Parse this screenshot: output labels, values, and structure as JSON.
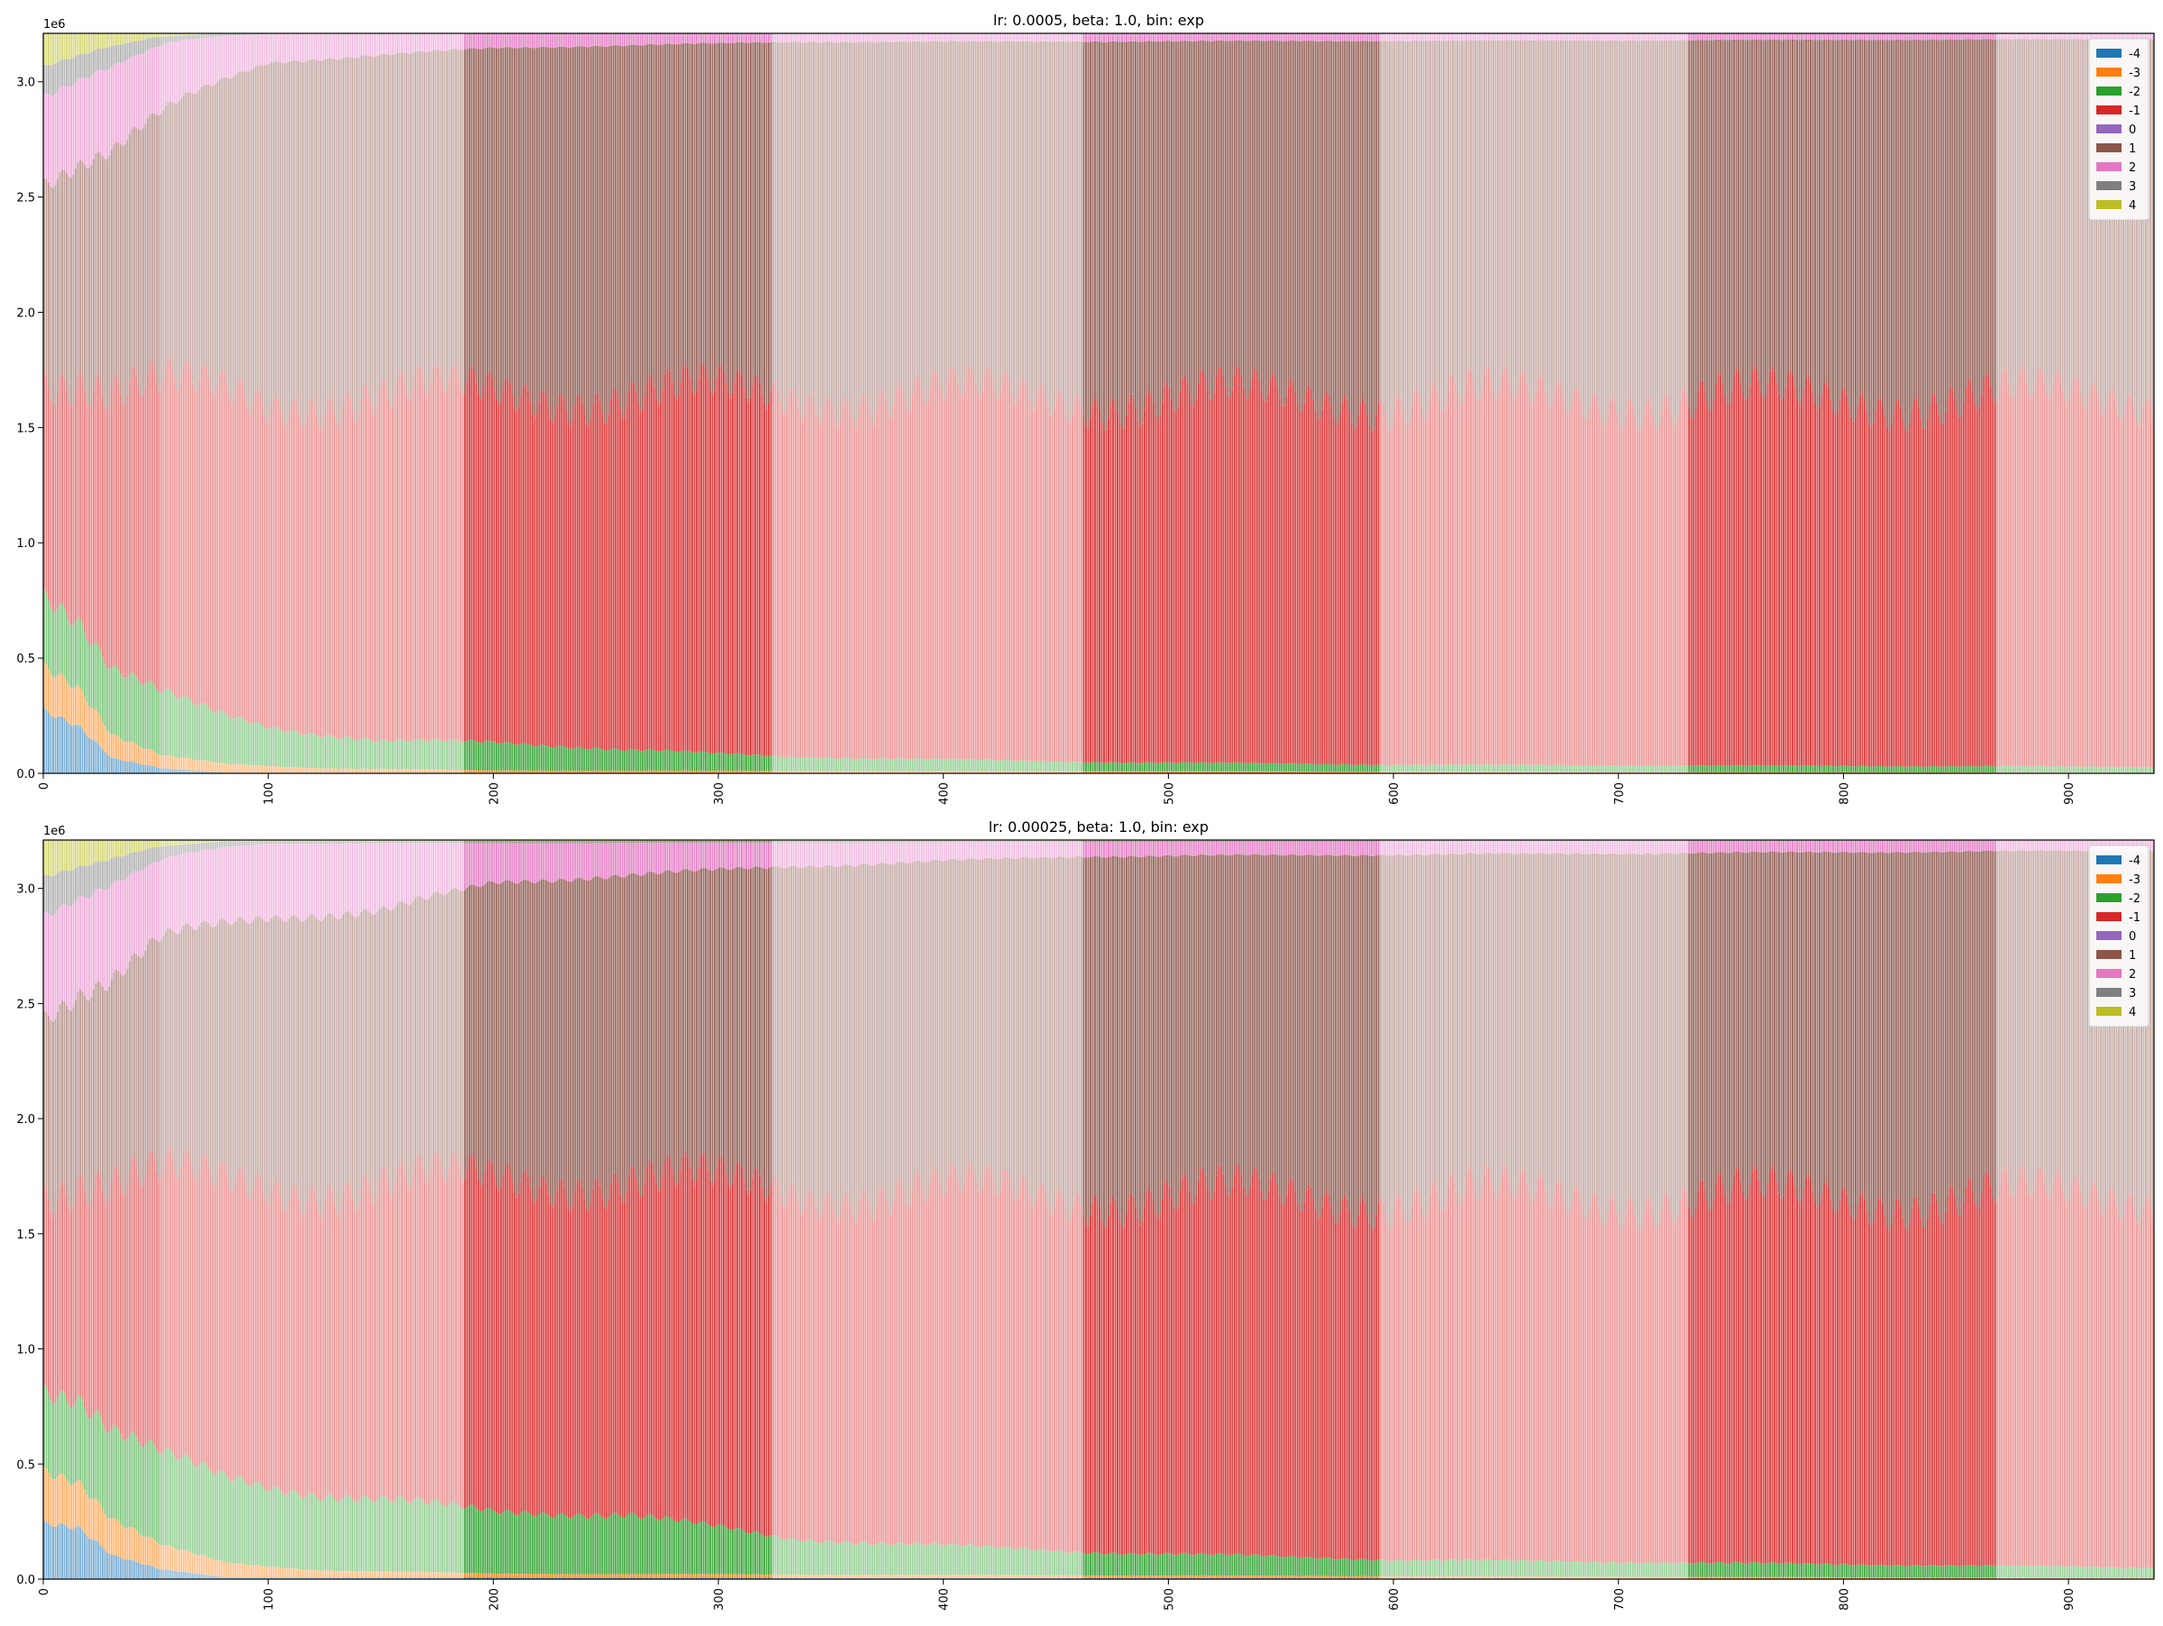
{
  "chart_data": [
    {
      "type": "bar",
      "stacked": true,
      "title": "lr: 0.0005, beta: 1.0, bin: exp",
      "xlabel": "",
      "ylabel": "",
      "y_offset_text": "1e6",
      "xlim": [
        0,
        938
      ],
      "ylim": [
        0,
        3210000
      ],
      "x_ticks": [
        "0",
        "100",
        "200",
        "300",
        "400",
        "500",
        "600",
        "700",
        "800",
        "900"
      ],
      "y_ticks": [
        "0.0",
        "0.5",
        "1.0",
        "1.5",
        "2.0",
        "2.5",
        "3.0"
      ],
      "x_tick_values": [
        0,
        100,
        200,
        300,
        400,
        500,
        600,
        700,
        800,
        900
      ],
      "y_tick_values": [
        0,
        500000,
        1000000,
        1500000,
        2000000,
        2500000,
        3000000
      ],
      "n_bars": 938,
      "bar_total": 3210000,
      "legend_position": "upper right",
      "grid": false,
      "alpha_bands": [
        [
          0,
          52,
          0.55
        ],
        [
          52,
          187,
          0.45
        ],
        [
          187,
          324,
          0.85
        ],
        [
          324,
          462,
          0.45
        ],
        [
          462,
          594,
          0.85
        ],
        [
          594,
          731,
          0.45
        ],
        [
          731,
          868,
          0.85
        ],
        [
          868,
          938,
          0.45
        ]
      ],
      "series": [
        {
          "name": "-4",
          "color": "#1f77b4",
          "profile": [
            [
              0,
              270000
            ],
            [
              15,
              200000
            ],
            [
              30,
              60000
            ],
            [
              52,
              20000
            ],
            [
              80,
              3000
            ],
            [
              938,
              0
            ]
          ]
        },
        {
          "name": "-3",
          "color": "#ff7f0e",
          "profile": [
            [
              0,
              190000
            ],
            [
              15,
              160000
            ],
            [
              30,
              90000
            ],
            [
              52,
              50000
            ],
            [
              120,
              20000
            ],
            [
              200,
              10000
            ],
            [
              938,
              3000
            ]
          ]
        },
        {
          "name": "-2",
          "color": "#2ca02c",
          "profile": [
            [
              0,
              300000
            ],
            [
              25,
              260000
            ],
            [
              52,
              250000
            ],
            [
              100,
              170000
            ],
            [
              150,
              120000
            ],
            [
              200,
              120000
            ],
            [
              260,
              90000
            ],
            [
              330,
              60000
            ],
            [
              460,
              40000
            ],
            [
              600,
              30000
            ],
            [
              938,
              25000
            ]
          ]
        },
        {
          "name": "-1",
          "color": "#d62728",
          "profile": [
            [
              0,
              900000
            ],
            [
              52,
              1200000
            ],
            [
              80,
              1350000
            ],
            [
              120,
              1450000
            ],
            [
              200,
              1500000
            ],
            [
              330,
              1550000
            ],
            [
              938,
              1600000
            ]
          ]
        },
        {
          "name": "0",
          "color": "#9467bd",
          "profile": [
            [
              0,
              0
            ],
            [
              938,
              0
            ]
          ]
        },
        {
          "name": "1",
          "color": "#8c564b",
          "profile": [
            [
              0,
              800000
            ],
            [
              30,
              950000
            ],
            [
              52,
              1100000
            ],
            [
              100,
              1450000
            ],
            [
              200,
              1480000
            ],
            [
              330,
              1520000
            ],
            [
              938,
              1560000
            ]
          ]
        },
        {
          "name": "2",
          "color": "#e377c2",
          "profile": [
            [
              0,
              350000
            ],
            [
              30,
              330000
            ],
            [
              52,
              270000
            ],
            [
              100,
              120000
            ],
            [
              200,
              60000
            ],
            [
              330,
              35000
            ],
            [
              938,
              25000
            ]
          ]
        },
        {
          "name": "3",
          "color": "#7f7f7f",
          "profile": [
            [
              0,
              120000
            ],
            [
              30,
              80000
            ],
            [
              60,
              20000
            ],
            [
              100,
              3000
            ],
            [
              938,
              0
            ]
          ]
        },
        {
          "name": "4",
          "color": "#bcbd22",
          "profile": [
            [
              0,
              130000
            ],
            [
              25,
              60000
            ],
            [
              50,
              15000
            ],
            [
              80,
              0
            ],
            [
              938,
              0
            ]
          ]
        }
      ]
    },
    {
      "type": "bar",
      "stacked": true,
      "title": "lr: 0.00025, beta: 1.0, bin: exp",
      "xlabel": "",
      "ylabel": "",
      "y_offset_text": "1e6",
      "xlim": [
        0,
        938
      ],
      "ylim": [
        0,
        3210000
      ],
      "x_ticks": [
        "0",
        "100",
        "200",
        "300",
        "400",
        "500",
        "600",
        "700",
        "800",
        "900"
      ],
      "y_ticks": [
        "0.0",
        "0.5",
        "1.0",
        "1.5",
        "2.0",
        "2.5",
        "3.0"
      ],
      "x_tick_values": [
        0,
        100,
        200,
        300,
        400,
        500,
        600,
        700,
        800,
        900
      ],
      "y_tick_values": [
        0,
        500000,
        1000000,
        1500000,
        2000000,
        2500000,
        3000000
      ],
      "n_bars": 938,
      "bar_total": 3210000,
      "legend_position": "upper right",
      "grid": false,
      "alpha_bands": [
        [
          0,
          52,
          0.55
        ],
        [
          52,
          187,
          0.45
        ],
        [
          187,
          324,
          0.85
        ],
        [
          324,
          462,
          0.45
        ],
        [
          462,
          594,
          0.85
        ],
        [
          594,
          731,
          0.45
        ],
        [
          731,
          868,
          0.85
        ],
        [
          868,
          938,
          0.45
        ]
      ],
      "series": [
        {
          "name": "-4",
          "color": "#1f77b4",
          "profile": [
            [
              0,
              250000
            ],
            [
              15,
              230000
            ],
            [
              30,
              100000
            ],
            [
              52,
              40000
            ],
            [
              80,
              8000
            ],
            [
              938,
              0
            ]
          ]
        },
        {
          "name": "-3",
          "color": "#ff7f0e",
          "profile": [
            [
              0,
              230000
            ],
            [
              15,
              200000
            ],
            [
              30,
              150000
            ],
            [
              52,
              100000
            ],
            [
              80,
              60000
            ],
            [
              120,
              30000
            ],
            [
              200,
              15000
            ],
            [
              938,
              5000
            ]
          ]
        },
        {
          "name": "-2",
          "color": "#2ca02c",
          "profile": [
            [
              0,
              350000
            ],
            [
              25,
              370000
            ],
            [
              52,
              380000
            ],
            [
              100,
              330000
            ],
            [
              150,
              300000
            ],
            [
              200,
              250000
            ],
            [
              260,
              250000
            ],
            [
              330,
              150000
            ],
            [
              460,
              100000
            ],
            [
              600,
              70000
            ],
            [
              938,
              45000
            ]
          ]
        },
        {
          "name": "-1",
          "color": "#d62728",
          "profile": [
            [
              0,
              850000
            ],
            [
              52,
              1150000
            ],
            [
              100,
              1250000
            ],
            [
              200,
              1350000
            ],
            [
              330,
              1450000
            ],
            [
              460,
              1500000
            ],
            [
              938,
              1600000
            ]
          ]
        },
        {
          "name": "0",
          "color": "#9467bd",
          "profile": [
            [
              0,
              0
            ],
            [
              938,
              0
            ]
          ]
        },
        {
          "name": "1",
          "color": "#8c564b",
          "profile": [
            [
              0,
              750000
            ],
            [
              30,
              850000
            ],
            [
              52,
              1000000
            ],
            [
              100,
              1100000
            ],
            [
              200,
              1200000
            ],
            [
              330,
              1350000
            ],
            [
              460,
              1430000
            ],
            [
              938,
              1500000
            ]
          ]
        },
        {
          "name": "2",
          "color": "#e377c2",
          "profile": [
            [
              0,
              420000
            ],
            [
              30,
              400000
            ],
            [
              52,
              330000
            ],
            [
              100,
              300000
            ],
            [
              150,
              280000
            ],
            [
              200,
              160000
            ],
            [
              330,
              100000
            ],
            [
              460,
              60000
            ],
            [
              938,
              45000
            ]
          ]
        },
        {
          "name": "3",
          "color": "#7f7f7f",
          "profile": [
            [
              0,
              160000
            ],
            [
              30,
              110000
            ],
            [
              60,
              40000
            ],
            [
              100,
              10000
            ],
            [
              938,
              0
            ]
          ]
        },
        {
          "name": "4",
          "color": "#bcbd22",
          "profile": [
            [
              0,
              150000
            ],
            [
              25,
              90000
            ],
            [
              50,
              30000
            ],
            [
              80,
              5000
            ],
            [
              938,
              0
            ]
          ]
        }
      ]
    }
  ]
}
